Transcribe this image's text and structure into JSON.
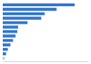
{
  "chart_data": {
    "type": "bar",
    "orientation": "horizontal",
    "categories": [
      null,
      null,
      null,
      null,
      null,
      null,
      null,
      null,
      null,
      null,
      null,
      null,
      null
    ],
    "values": [
      84,
      63,
      49,
      45,
      29,
      18,
      17,
      15,
      12,
      9,
      6,
      4,
      2
    ],
    "colors": [
      "#2f74d0",
      "#2f74d0",
      "#2f74d0",
      "#2f74d0",
      "#2f74d0",
      "#2f74d0",
      "#2f74d0",
      "#2f74d0",
      "#2f74d0",
      "#2f74d0",
      "#2f74d0",
      "#2f74d0",
      "#a9c3e8"
    ],
    "xlim": [
      0,
      100
    ],
    "tick_labels": false,
    "grid": false
  }
}
